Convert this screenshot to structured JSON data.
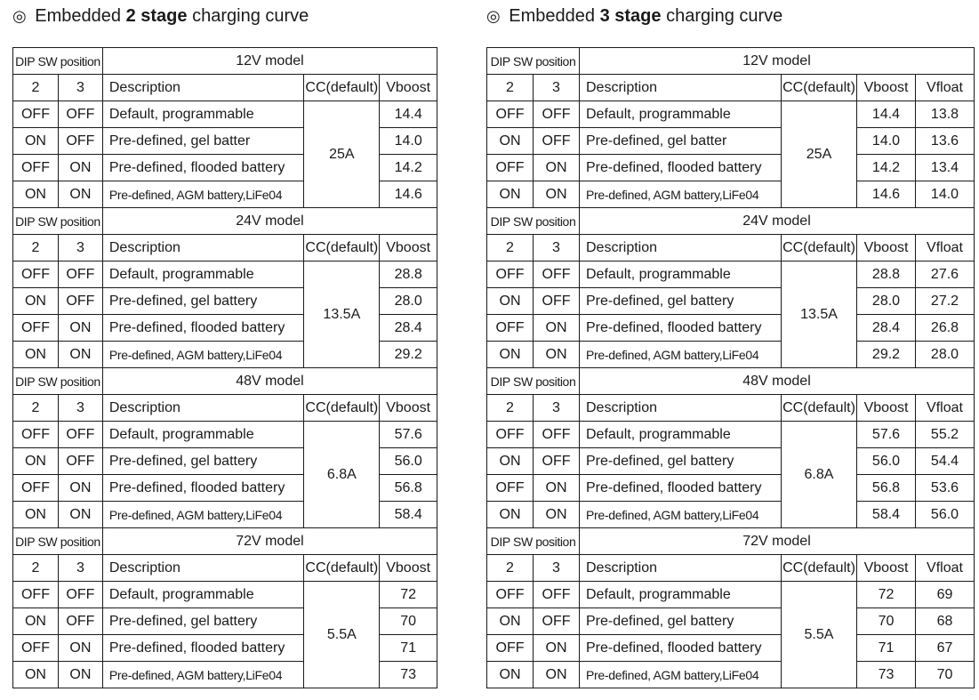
{
  "sections": [
    {
      "symbol": "◎",
      "heading_prefix": "Embedded",
      "heading_bold": "2 stage",
      "heading_suffix": "charging curve",
      "has_float": false,
      "models": [
        {
          "dip_label": "DIP SW position",
          "title": "12V model",
          "cc": "25A",
          "rows": [
            {
              "sw2": "OFF",
              "sw3": "OFF",
              "desc": "Default, programmable",
              "boost": "14.4"
            },
            {
              "sw2": "ON",
              "sw3": "OFF",
              "desc": "Pre-defined, gel batter",
              "boost": "14.0"
            },
            {
              "sw2": "OFF",
              "sw3": "ON",
              "desc": "Pre-defined, flooded battery",
              "boost": "14.2"
            },
            {
              "sw2": "ON",
              "sw3": "ON",
              "desc": "Pre-defined, AGM battery,LiFe04",
              "boost": "14.6"
            }
          ]
        },
        {
          "dip_label": "DIP SW position",
          "title": "24V model",
          "cc": "13.5A",
          "rows": [
            {
              "sw2": "OFF",
              "sw3": "OFF",
              "desc": "Default, programmable",
              "boost": "28.8"
            },
            {
              "sw2": "ON",
              "sw3": "OFF",
              "desc": "Pre-defined, gel battery",
              "boost": "28.0"
            },
            {
              "sw2": "OFF",
              "sw3": "ON",
              "desc": "Pre-defined, flooded battery",
              "boost": "28.4"
            },
            {
              "sw2": "ON",
              "sw3": "ON",
              "desc": "Pre-defined, AGM battery,LiFe04",
              "boost": "29.2"
            }
          ]
        },
        {
          "dip_label": "DIP SW position",
          "title": "48V model",
          "cc": "6.8A",
          "rows": [
            {
              "sw2": "OFF",
              "sw3": "OFF",
              "desc": "Default, programmable",
              "boost": "57.6"
            },
            {
              "sw2": "ON",
              "sw3": "OFF",
              "desc": "Pre-defined, gel battery",
              "boost": "56.0"
            },
            {
              "sw2": "OFF",
              "sw3": "ON",
              "desc": "Pre-defined, flooded battery",
              "boost": "56.8"
            },
            {
              "sw2": "ON",
              "sw3": "ON",
              "desc": "Pre-defined, AGM battery,LiFe04",
              "boost": "58.4"
            }
          ]
        },
        {
          "dip_label": "DIP SW position",
          "title": "72V model",
          "cc": "5.5A",
          "rows": [
            {
              "sw2": "OFF",
              "sw3": "OFF",
              "desc": "Default, programmable",
              "boost": "72"
            },
            {
              "sw2": "ON",
              "sw3": "OFF",
              "desc": "Pre-defined, gel battery",
              "boost": "70"
            },
            {
              "sw2": "OFF",
              "sw3": "ON",
              "desc": "Pre-defined, flooded battery",
              "boost": "71"
            },
            {
              "sw2": "ON",
              "sw3": "ON",
              "desc": "Pre-defined, AGM battery,LiFe04",
              "boost": "73"
            }
          ]
        }
      ]
    },
    {
      "symbol": "◎",
      "heading_prefix": "Embedded",
      "heading_bold": "3 stage",
      "heading_suffix": "charging curve",
      "has_float": true,
      "models": [
        {
          "dip_label": "DIP SW position",
          "title": "12V model",
          "cc": "25A",
          "rows": [
            {
              "sw2": "OFF",
              "sw3": "OFF",
              "desc": "Default, programmable",
              "boost": "14.4",
              "float": "13.8"
            },
            {
              "sw2": "ON",
              "sw3": "OFF",
              "desc": "Pre-defined, gel batter",
              "boost": "14.0",
              "float": "13.6"
            },
            {
              "sw2": "OFF",
              "sw3": "ON",
              "desc": "Pre-defined, flooded battery",
              "boost": "14.2",
              "float": "13.4"
            },
            {
              "sw2": "ON",
              "sw3": "ON",
              "desc": "Pre-defined, AGM battery,LiFe04",
              "boost": "14.6",
              "float": "14.0"
            }
          ]
        },
        {
          "dip_label": "DIP SW position",
          "title": "24V model",
          "cc": "13.5A",
          "rows": [
            {
              "sw2": "OFF",
              "sw3": "OFF",
              "desc": "Default, programmable",
              "boost": "28.8",
              "float": "27.6"
            },
            {
              "sw2": "ON",
              "sw3": "OFF",
              "desc": "Pre-defined, gel battery",
              "boost": "28.0",
              "float": "27.2"
            },
            {
              "sw2": "OFF",
              "sw3": "ON",
              "desc": "Pre-defined, flooded battery",
              "boost": "28.4",
              "float": "26.8"
            },
            {
              "sw2": "ON",
              "sw3": "ON",
              "desc": "Pre-defined, AGM battery,LiFe04",
              "boost": "29.2",
              "float": "28.0"
            }
          ]
        },
        {
          "dip_label": "DIP SW position",
          "title": "48V model",
          "cc": "6.8A",
          "rows": [
            {
              "sw2": "OFF",
              "sw3": "OFF",
              "desc": "Default, programmable",
              "boost": "57.6",
              "float": "55.2"
            },
            {
              "sw2": "ON",
              "sw3": "OFF",
              "desc": "Pre-defined, gel battery",
              "boost": "56.0",
              "float": "54.4"
            },
            {
              "sw2": "OFF",
              "sw3": "ON",
              "desc": "Pre-defined, flooded battery",
              "boost": "56.8",
              "float": "53.6"
            },
            {
              "sw2": "ON",
              "sw3": "ON",
              "desc": "Pre-defined, AGM battery,LiFe04",
              "boost": "58.4",
              "float": "56.0"
            }
          ]
        },
        {
          "dip_label": "DIP SW position",
          "title": "72V model",
          "cc": "5.5A",
          "rows": [
            {
              "sw2": "OFF",
              "sw3": "OFF",
              "desc": "Default, programmable",
              "boost": "72",
              "float": "69"
            },
            {
              "sw2": "ON",
              "sw3": "OFF",
              "desc": "Pre-defined, gel battery",
              "boost": "70",
              "float": "68"
            },
            {
              "sw2": "OFF",
              "sw3": "ON",
              "desc": "Pre-defined, flooded battery",
              "boost": "71",
              "float": "67"
            },
            {
              "sw2": "ON",
              "sw3": "ON",
              "desc": "Pre-defined, AGM battery,LiFe04",
              "boost": "73",
              "float": "70"
            }
          ]
        }
      ]
    }
  ],
  "column_headers": {
    "sw2": "2",
    "sw3": "3",
    "desc": "Description",
    "cc": "CC(default)",
    "boost": "Vboost",
    "float": "Vfloat"
  }
}
